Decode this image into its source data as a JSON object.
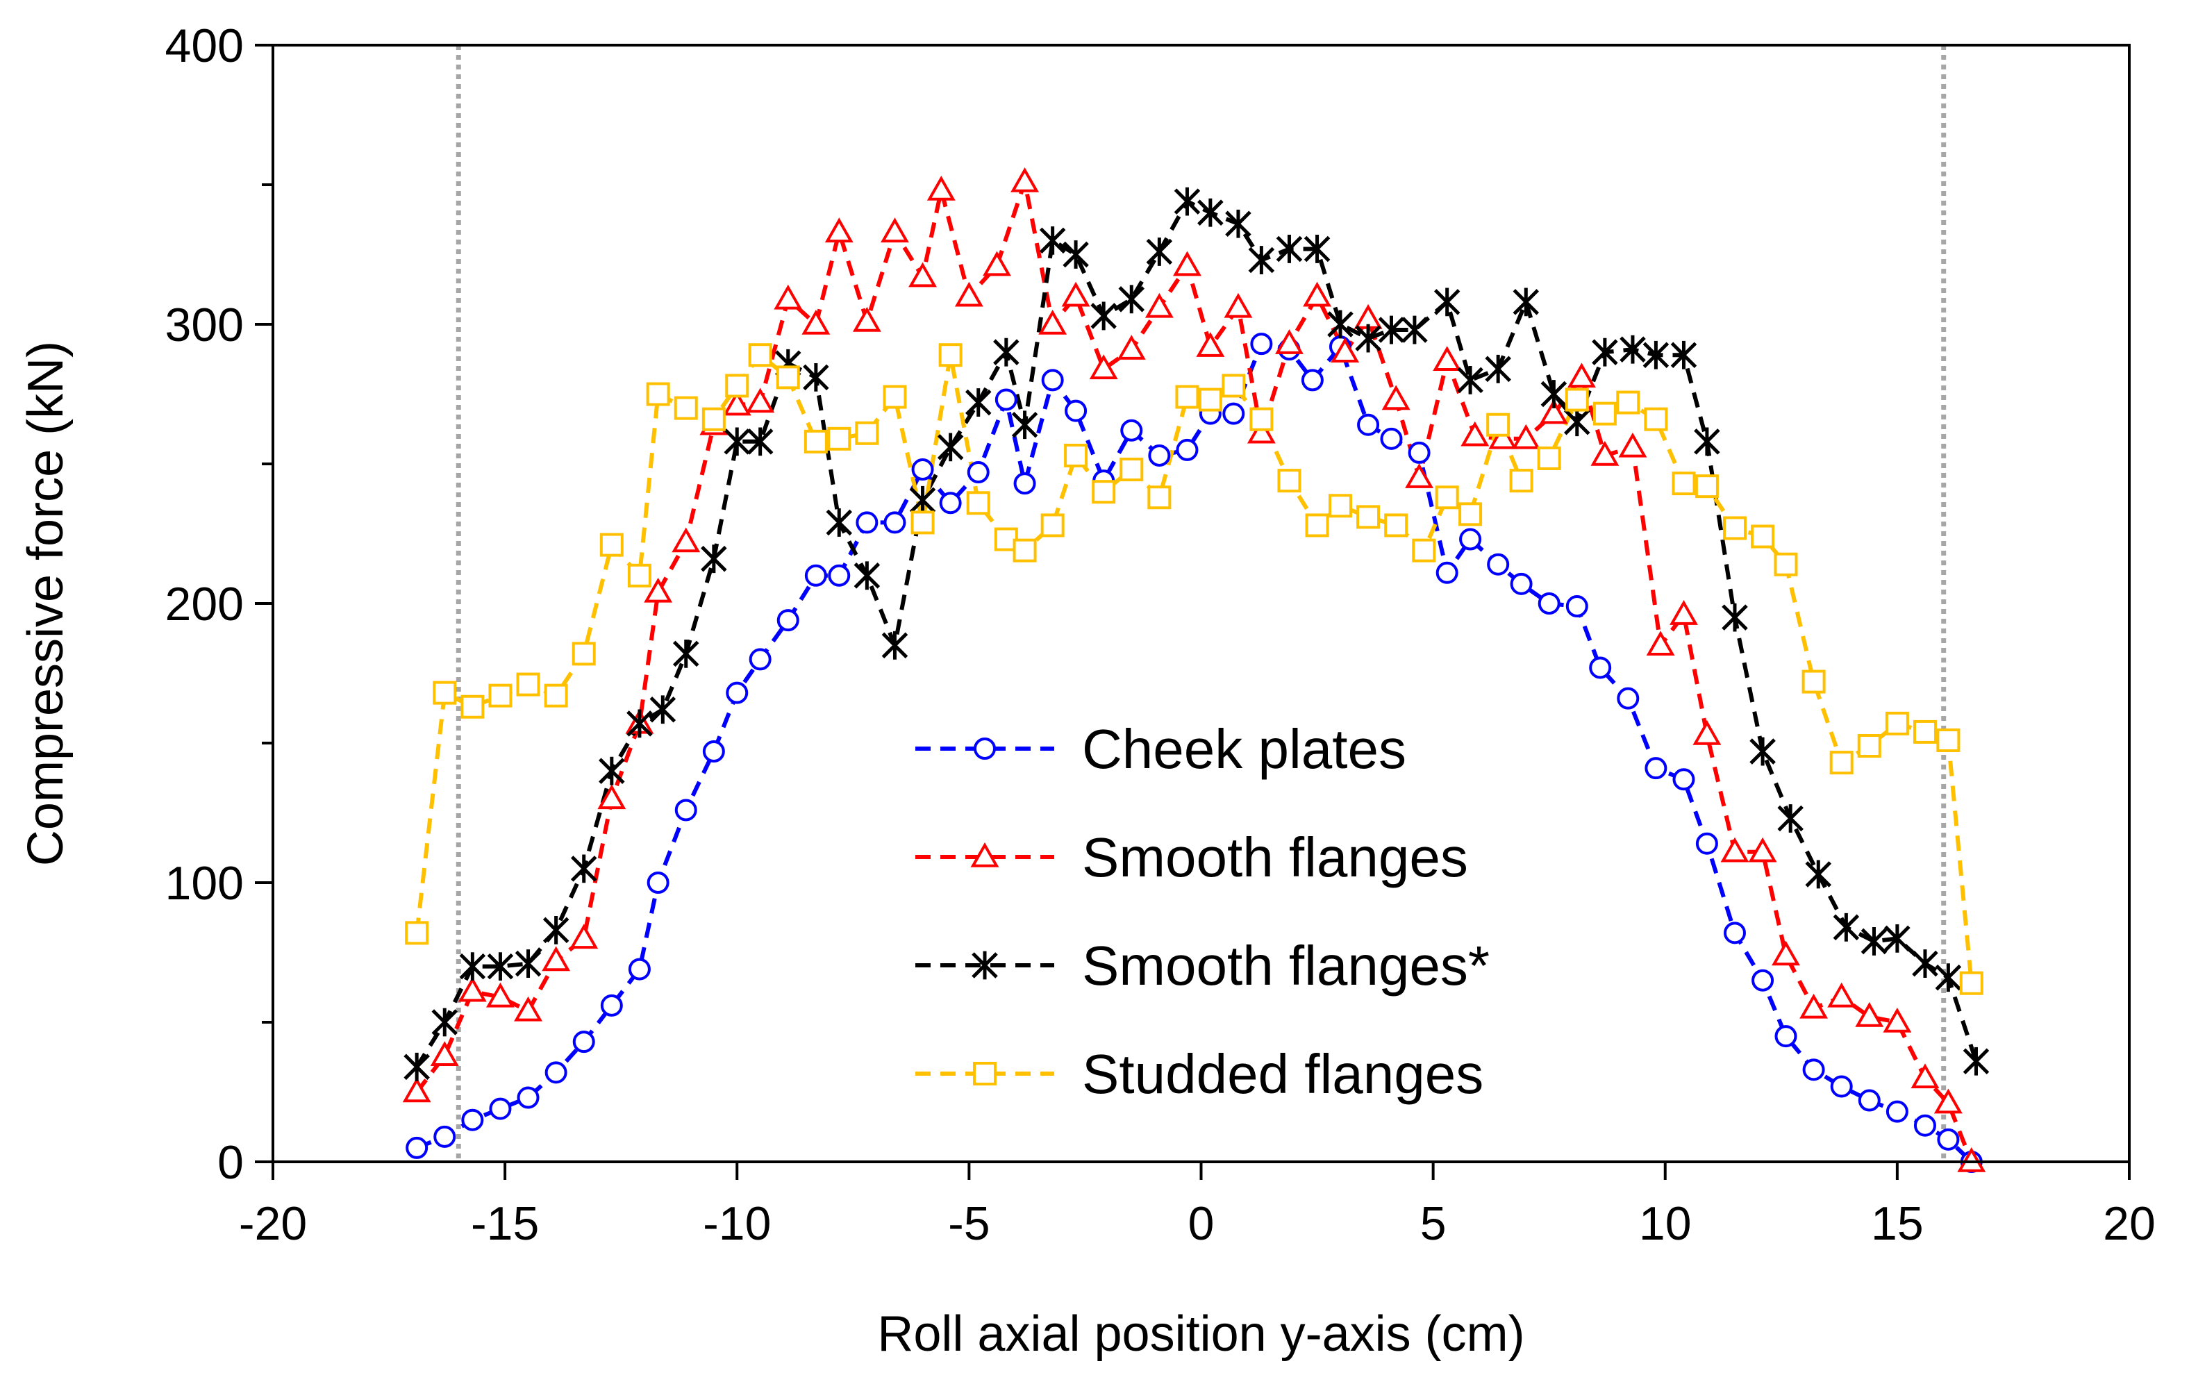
{
  "chart_data": {
    "type": "line",
    "xlabel": "Roll axial position y-axis (cm)",
    "ylabel": "Compressive force (kN)",
    "xlim": [
      -20,
      20
    ],
    "ylim": [
      0,
      400
    ],
    "x_ticks": [
      -20,
      -15,
      -10,
      -5,
      0,
      5,
      10,
      15,
      20
    ],
    "y_ticks": [
      0,
      100,
      200,
      300,
      400
    ],
    "y_minor_ticks": [
      50,
      150,
      250,
      350
    ],
    "x_tick_labels": [
      "-20",
      "-15",
      "-10",
      "-5",
      "0",
      "5",
      "10",
      "15",
      "20"
    ],
    "y_tick_labels": [
      "0",
      "100",
      "200",
      "300",
      "400"
    ],
    "reference_lines_x": [
      -16,
      16
    ],
    "grid": false,
    "legend_position": "lower-center",
    "series": [
      {
        "name": "Cheek plates",
        "color": "#0000ff",
        "marker": "circle",
        "x": [
          -16.9,
          -16.3,
          -15.7,
          -15.1,
          -14.5,
          -13.9,
          -13.3,
          -12.7,
          -12.1,
          -11.7,
          -11.1,
          -10.5,
          -10.0,
          -9.5,
          -8.9,
          -8.3,
          -7.8,
          -7.2,
          -6.6,
          -6.0,
          -5.4,
          -4.8,
          -4.2,
          -3.8,
          -3.2,
          -2.7,
          -2.1,
          -1.5,
          -0.9,
          -0.3,
          0.2,
          0.7,
          1.3,
          1.9,
          2.4,
          3.0,
          3.6,
          4.1,
          4.7,
          5.3,
          5.8,
          6.4,
          6.9,
          7.5,
          8.1,
          8.6,
          9.2,
          9.8,
          10.4,
          10.9,
          11.5,
          12.1,
          12.6,
          13.2,
          13.8,
          14.4,
          15.0,
          15.6,
          16.1,
          16.6
        ],
        "y": [
          5,
          9,
          15,
          19,
          23,
          32,
          43,
          56,
          69,
          100,
          126,
          147,
          168,
          180,
          194,
          210,
          210,
          229,
          229,
          248,
          236,
          247,
          273,
          243,
          280,
          269,
          244,
          262,
          253,
          255,
          268,
          268,
          293,
          291,
          280,
          292,
          264,
          259,
          254,
          211,
          223,
          214,
          207,
          200,
          199,
          177,
          166,
          141,
          137,
          114,
          82,
          65,
          45,
          33,
          27,
          22,
          18,
          13,
          8,
          0
        ]
      },
      {
        "name": "Smooth flanges",
        "color": "#ff0000",
        "marker": "triangle",
        "x": [
          -16.9,
          -16.3,
          -15.7,
          -15.1,
          -14.5,
          -13.9,
          -13.3,
          -12.7,
          -12.1,
          -11.7,
          -11.1,
          -10.5,
          -10.0,
          -9.5,
          -8.9,
          -8.3,
          -7.8,
          -7.2,
          -6.6,
          -6.0,
          -5.6,
          -5.0,
          -4.4,
          -3.8,
          -3.2,
          -2.7,
          -2.1,
          -1.5,
          -0.9,
          -0.3,
          0.2,
          0.8,
          1.3,
          1.9,
          2.5,
          3.1,
          3.6,
          4.2,
          4.7,
          5.3,
          5.9,
          6.5,
          7.0,
          7.6,
          8.2,
          8.7,
          9.3,
          9.9,
          10.4,
          10.9,
          11.5,
          12.1,
          12.6,
          13.2,
          13.8,
          14.4,
          15.0,
          15.6,
          16.1,
          16.6
        ],
        "y": [
          25,
          38,
          61,
          59,
          54,
          72,
          80,
          130,
          157,
          204,
          222,
          264,
          271,
          272,
          309,
          300,
          333,
          301,
          333,
          317,
          348,
          310,
          321,
          351,
          300,
          310,
          284,
          291,
          306,
          321,
          292,
          306,
          261,
          293,
          310,
          290,
          302,
          273,
          245,
          287,
          260,
          259,
          259,
          268,
          281,
          253,
          256,
          185,
          196,
          153,
          111,
          111,
          74,
          55,
          59,
          52,
          50,
          30,
          21,
          0
        ]
      },
      {
        "name": "Smooth flanges*",
        "color": "#000000",
        "marker": "asterisk",
        "x": [
          -16.9,
          -16.3,
          -15.7,
          -15.1,
          -14.5,
          -13.9,
          -13.3,
          -12.7,
          -12.1,
          -11.6,
          -11.1,
          -10.5,
          -10.0,
          -9.5,
          -8.9,
          -8.3,
          -7.8,
          -7.2,
          -6.6,
          -6.0,
          -5.4,
          -4.8,
          -4.2,
          -3.8,
          -3.2,
          -2.7,
          -2.1,
          -1.5,
          -0.9,
          -0.3,
          0.2,
          0.8,
          1.3,
          1.9,
          2.5,
          3.0,
          3.6,
          4.1,
          4.6,
          5.3,
          5.8,
          6.4,
          7.0,
          7.6,
          8.1,
          8.7,
          9.3,
          9.8,
          10.4,
          10.9,
          11.5,
          12.1,
          12.7,
          13.3,
          13.9,
          14.5,
          15.0,
          15.6,
          16.1,
          16.7
        ],
        "y": [
          34,
          50,
          70,
          70,
          71,
          83,
          105,
          140,
          157,
          162,
          182,
          216,
          258,
          258,
          286,
          281,
          229,
          210,
          185,
          237,
          256,
          272,
          290,
          264,
          330,
          325,
          303,
          309,
          326,
          344,
          340,
          336,
          323,
          327,
          327,
          300,
          295,
          298,
          298,
          308,
          280,
          284,
          308,
          275,
          265,
          290,
          291,
          289,
          289,
          258,
          195,
          147,
          123,
          103,
          84,
          79,
          80,
          71,
          66,
          36
        ]
      },
      {
        "name": "Studded flanges",
        "color": "#ffc000",
        "marker": "square",
        "x": [
          -16.9,
          -16.3,
          -15.7,
          -15.1,
          -14.5,
          -13.9,
          -13.3,
          -12.7,
          -12.1,
          -11.7,
          -11.1,
          -10.5,
          -10.0,
          -9.5,
          -8.9,
          -8.3,
          -7.8,
          -7.2,
          -6.6,
          -6.0,
          -5.4,
          -4.8,
          -4.2,
          -3.8,
          -3.2,
          -2.7,
          -2.1,
          -1.5,
          -0.9,
          -0.3,
          0.2,
          0.7,
          1.3,
          1.9,
          2.5,
          3.0,
          3.6,
          4.2,
          4.8,
          5.3,
          5.8,
          6.4,
          6.9,
          7.5,
          8.1,
          8.7,
          9.2,
          9.8,
          10.4,
          10.9,
          11.5,
          12.1,
          12.6,
          13.2,
          13.8,
          14.4,
          15.0,
          15.6,
          16.1,
          16.6
        ],
        "y": [
          82,
          168,
          163,
          167,
          171,
          167,
          182,
          221,
          210,
          275,
          270,
          266,
          278,
          289,
          281,
          258,
          259,
          261,
          274,
          229,
          289,
          236,
          223,
          219,
          228,
          253,
          240,
          248,
          238,
          274,
          273,
          278,
          266,
          244,
          228,
          235,
          231,
          228,
          219,
          238,
          232,
          264,
          244,
          252,
          273,
          268,
          272,
          266,
          243,
          242,
          227,
          224,
          214,
          172,
          143,
          149,
          157,
          154,
          151,
          64
        ]
      }
    ]
  }
}
